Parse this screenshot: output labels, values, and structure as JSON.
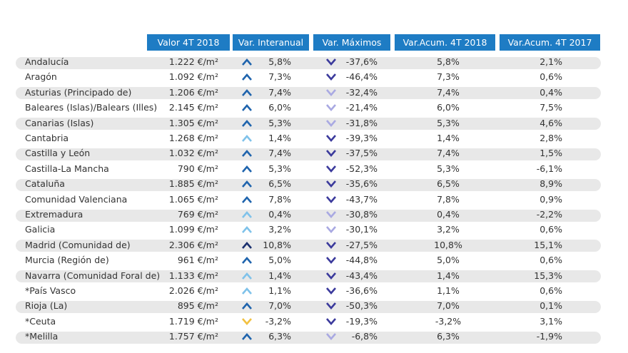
{
  "table": {
    "header": [
      "Valor 4T 2018",
      "Var. Interanual",
      "Var. Máximos",
      "Var.Acum. 4T 2018",
      "Var.Acum. 4T 2017"
    ],
    "rows": [
      [
        "Andalucía",
        "1.222 €/m²",
        "5,8%",
        "-37,6%",
        "5,8%",
        "2,1%"
      ],
      [
        "Aragón",
        "1.092 €/m²",
        "7,3%",
        "-46,4%",
        "7,3%",
        "0,6%"
      ],
      [
        "Asturias (Principado de)",
        "1.206 €/m²",
        "7,4%",
        "-32,4%",
        "7,4%",
        "0,4%"
      ],
      [
        "Baleares (Islas)/Balears (Illes)",
        "2.145 €/m²",
        "6,0%",
        "-21,4%",
        "6,0%",
        "7,5%"
      ],
      [
        "Canarias (Islas)",
        "1.305 €/m²",
        "5,3%",
        "-31,8%",
        "5,3%",
        "4,6%"
      ],
      [
        "Cantabria",
        "1.268 €/m²",
        "1,4%",
        "-39,3%",
        "1,4%",
        "2,8%"
      ],
      [
        "Castilla y León",
        "1.032 €/m²",
        "7,4%",
        "-37,5%",
        "7,4%",
        "1,5%"
      ],
      [
        "Castilla-La Mancha",
        "790 €/m²",
        "5,3%",
        "-52,3%",
        "5,3%",
        "-6,1%"
      ],
      [
        "Cataluña",
        "1.885 €/m²",
        "6,5%",
        "-35,6%",
        "6,5%",
        "8,9%"
      ],
      [
        "Comunidad Valenciana",
        "1.065 €/m²",
        "7,8%",
        "-43,7%",
        "7,8%",
        "0,9%"
      ],
      [
        "Extremadura",
        "769 €/m²",
        "0,4%",
        "-30,8%",
        "0,4%",
        "-2,2%"
      ],
      [
        "Galicia",
        "1.099 €/m²",
        "3,2%",
        "-30,1%",
        "3,2%",
        "0,6%"
      ],
      [
        "Madrid (Comunidad de)",
        "2.306 €/m²",
        "10,8%",
        "-27,5%",
        "10,8%",
        "15,1%"
      ],
      [
        "Murcia (Región de)",
        "961 €/m²",
        "5,0%",
        "-44,8%",
        "5,0%",
        "0,6%"
      ],
      [
        "Navarra (Comunidad Foral de)",
        "1.133 €/m²",
        "1,4%",
        "-43,4%",
        "1,4%",
        "15,3%"
      ],
      [
        "*País Vasco",
        "2.026 €/m²",
        "1,1%",
        "-36,6%",
        "1,1%",
        "0,6%"
      ],
      [
        "Rioja (La)",
        "895 €/m²",
        "7,0%",
        "-50,3%",
        "7,0%",
        "0,1%"
      ],
      [
        "*Ceuta",
        "1.719 €/m²",
        "-3,2%",
        "-19,3%",
        "-3,2%",
        "3,1%"
      ],
      [
        "*Melilla",
        "1.757 €/m²",
        "6,3%",
        "-6,8%",
        "6,3%",
        "-1,9%"
      ]
    ],
    "arrow_colors": [
      [
        "#1f64ad",
        "#3b3a9c"
      ],
      [
        "#1f64ad",
        "#3b3a9c"
      ],
      [
        "#1f64ad",
        "#a9a9e2"
      ],
      [
        "#1f64ad",
        "#a9a9e2"
      ],
      [
        "#1f64ad",
        "#a9a9e2"
      ],
      [
        "#7fc2ea",
        "#3b3a9c"
      ],
      [
        "#1f64ad",
        "#3b3a9c"
      ],
      [
        "#1f64ad",
        "#3b3a9c"
      ],
      [
        "#1f64ad",
        "#3b3a9c"
      ],
      [
        "#1f64ad",
        "#3b3a9c"
      ],
      [
        "#7fc2ea",
        "#a9a9e2"
      ],
      [
        "#7fc2ea",
        "#a9a9e2"
      ],
      [
        "#1a2f6e",
        "#3b3a9c"
      ],
      [
        "#1f64ad",
        "#3b3a9c"
      ],
      [
        "#7fc2ea",
        "#3b3a9c"
      ],
      [
        "#7fc2ea",
        "#3b3a9c"
      ],
      [
        "#1f64ad",
        "#3b3a9c"
      ],
      [
        "#f2c141",
        "#3b3a9c"
      ],
      [
        "#1f64ad",
        "#a9a9e2"
      ]
    ]
  }
}
